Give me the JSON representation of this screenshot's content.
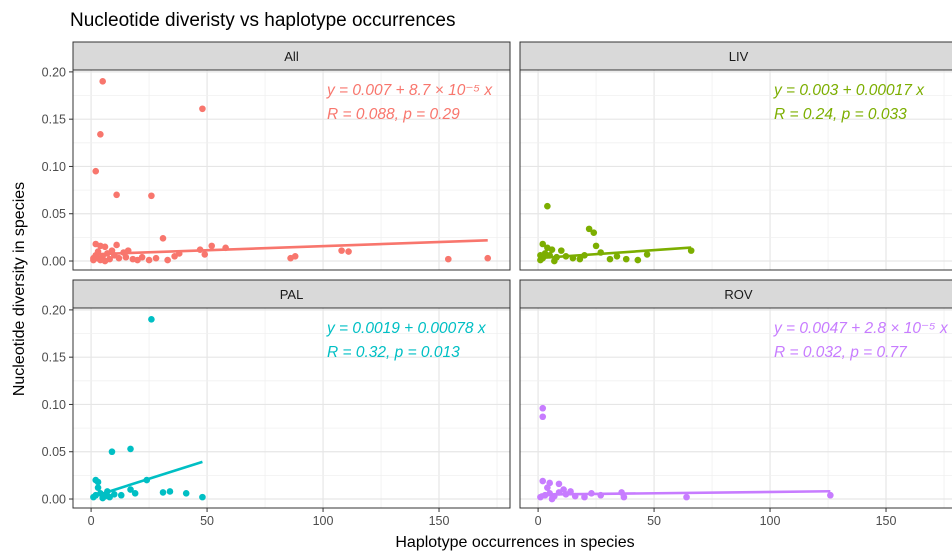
{
  "title": "Nucleotide diveristy vs haplotype occurrences",
  "x_label": "Haplotype occurrences in species",
  "y_label": "Nucleotide diversity in species",
  "axes": {
    "xlim": [
      -7.8,
      180.6
    ],
    "ylim": [
      -0.0095,
      0.202
    ],
    "xticks": [
      0,
      50,
      100,
      150
    ],
    "yticks": [
      {
        "value": 0,
        "label": "0.00"
      },
      {
        "value": 0.05,
        "label": "0.05"
      },
      {
        "value": 0.1,
        "label": "0.10"
      },
      {
        "value": 0.15,
        "label": "0.15"
      },
      {
        "value": 0.2,
        "label": "0.20"
      }
    ],
    "grid": true
  },
  "chart_data": [
    {
      "type": "scatter",
      "title": "All",
      "color": "#F8766D",
      "x": [
        5,
        48,
        4,
        2,
        11,
        26,
        31,
        2,
        4,
        6,
        11,
        3,
        7,
        1,
        3,
        5,
        8,
        10,
        12,
        15,
        18,
        20,
        22,
        25,
        28,
        33,
        36,
        38,
        47,
        49,
        52,
        58,
        86,
        88,
        108,
        111,
        154,
        171,
        2,
        9,
        14,
        4,
        16,
        6,
        1
      ],
      "y": [
        0.19,
        0.161,
        0.134,
        0.095,
        0.07,
        0.069,
        0.024,
        0.018,
        0.016,
        0.015,
        0.017,
        0.01,
        0.008,
        0.001,
        0.003,
        0.005,
        0.002,
        0.006,
        0.003,
        0.004,
        0.002,
        0.001,
        0.004,
        0.001,
        0.003,
        0.001,
        0.005,
        0.008,
        0.012,
        0.007,
        0.016,
        0.014,
        0.003,
        0.005,
        0.011,
        0.01,
        0.002,
        0.003,
        0.006,
        0.011,
        0.009,
        0.001,
        0.011,
        0.0,
        0.003
      ],
      "fit": {
        "x": [
          1,
          171
        ],
        "y": [
          0.0071,
          0.0219
        ]
      },
      "annotations": [
        "y = 0.007 + 8.7 × 10⁻⁵ x",
        "R = 0.088, p = 0.29"
      ]
    },
    {
      "type": "scatter",
      "title": "LIV",
      "color": "#7CAE00",
      "x": [
        4,
        22,
        24,
        2,
        4,
        6,
        10,
        3,
        5,
        8,
        1,
        2,
        12,
        15,
        18,
        25,
        27,
        31,
        34,
        38,
        43,
        47,
        66,
        7,
        1,
        20
      ],
      "y": [
        0.058,
        0.034,
        0.03,
        0.018,
        0.014,
        0.012,
        0.011,
        0.008,
        0.006,
        0.004,
        0.001,
        0.003,
        0.005,
        0.003,
        0.002,
        0.016,
        0.009,
        0.002,
        0.005,
        0.002,
        0.001,
        0.007,
        0.011,
        0.0,
        0.006,
        0.006
      ],
      "fit": {
        "x": [
          1,
          66
        ],
        "y": [
          0.0032,
          0.0142
        ]
      },
      "annotations": [
        "y = 0.003 + 0.00017 x",
        "R = 0.24, p = 0.033"
      ]
    },
    {
      "type": "scatter",
      "title": "PAL",
      "color": "#00BFC4",
      "x": [
        26,
        17,
        9,
        2,
        3,
        24,
        3,
        1,
        2,
        4,
        5,
        6,
        8,
        10,
        13,
        17,
        19,
        31,
        34,
        41,
        48,
        7
      ],
      "y": [
        0.19,
        0.053,
        0.05,
        0.02,
        0.018,
        0.02,
        0.012,
        0.002,
        0.004,
        0.006,
        0.001,
        0.003,
        0.002,
        0.005,
        0.004,
        0.01,
        0.006,
        0.007,
        0.008,
        0.006,
        0.002,
        0.008
      ],
      "fit": {
        "x": [
          1,
          48
        ],
        "y": [
          0.0027,
          0.0393
        ]
      },
      "annotations": [
        "y = 0.0019 + 0.00078 x",
        "R = 0.32, p = 0.013"
      ]
    },
    {
      "type": "scatter",
      "title": "ROV",
      "color": "#C77CFF",
      "x": [
        2,
        2,
        2,
        5,
        9,
        4,
        11,
        1,
        3,
        5,
        7,
        9,
        12,
        14,
        16,
        20,
        23,
        27,
        36,
        37,
        64,
        126,
        6
      ],
      "y": [
        0.096,
        0.087,
        0.019,
        0.017,
        0.016,
        0.012,
        0.01,
        0.002,
        0.004,
        0.006,
        0.003,
        0.007,
        0.005,
        0.008,
        0.003,
        0.002,
        0.006,
        0.004,
        0.007,
        0.002,
        0.002,
        0.004,
        0.0
      ],
      "fit": {
        "x": [
          1,
          126
        ],
        "y": [
          0.0047,
          0.0082
        ]
      },
      "annotations": [
        "y = 0.0047 + 2.8 × 10⁻⁵ x",
        "R = 0.032, p = 0.77"
      ]
    }
  ]
}
